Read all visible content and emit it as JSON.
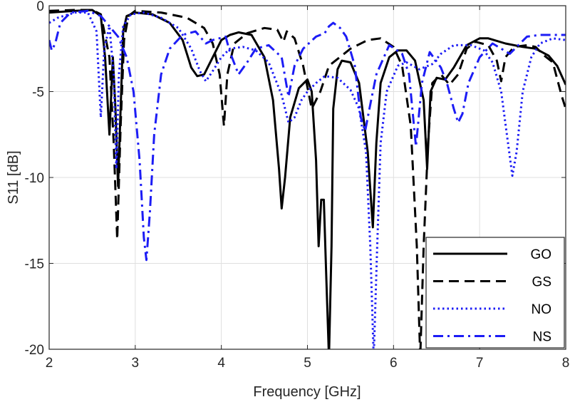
{
  "chart_data": {
    "type": "line",
    "title": "",
    "xlabel": "Frequency [GHz]",
    "ylabel": "S11 [dB]",
    "xlim": [
      2,
      8
    ],
    "ylim": [
      -20,
      0
    ],
    "xticks": [
      2,
      3,
      4,
      5,
      6,
      7,
      8
    ],
    "yticks": [
      0,
      -5,
      -10,
      -15,
      -20
    ],
    "xtick_labels": [
      "2",
      "3",
      "4",
      "5",
      "6",
      "7",
      "8"
    ],
    "ytick_labels": [
      "0",
      "-5",
      "-10",
      "-15",
      "-20"
    ],
    "grid": true,
    "legend_position": "bottom-right",
    "series": [
      {
        "name": "GO",
        "color": "#000000",
        "style": "solid",
        "points": [
          [
            2.0,
            -0.4
          ],
          [
            2.3,
            -0.3
          ],
          [
            2.5,
            -0.25
          ],
          [
            2.6,
            -0.6
          ],
          [
            2.65,
            -3
          ],
          [
            2.7,
            -7.5
          ],
          [
            2.74,
            -3
          ],
          [
            2.77,
            -6
          ],
          [
            2.8,
            -10.5
          ],
          [
            2.83,
            -6
          ],
          [
            2.86,
            -1.5
          ],
          [
            2.9,
            -0.6
          ],
          [
            3.0,
            -0.4
          ],
          [
            3.2,
            -0.5
          ],
          [
            3.4,
            -1.0
          ],
          [
            3.55,
            -2.0
          ],
          [
            3.65,
            -3.6
          ],
          [
            3.72,
            -4.1
          ],
          [
            3.8,
            -4.0
          ],
          [
            3.9,
            -3.0
          ],
          [
            4.0,
            -2.0
          ],
          [
            4.1,
            -1.7
          ],
          [
            4.2,
            -1.55
          ],
          [
            4.35,
            -1.7
          ],
          [
            4.5,
            -3.0
          ],
          [
            4.6,
            -5.5
          ],
          [
            4.67,
            -9.5
          ],
          [
            4.7,
            -11.8
          ],
          [
            4.74,
            -10
          ],
          [
            4.8,
            -6.5
          ],
          [
            4.9,
            -4.8
          ],
          [
            5.0,
            -4.3
          ],
          [
            5.05,
            -5
          ],
          [
            5.1,
            -9
          ],
          [
            5.13,
            -14
          ],
          [
            5.16,
            -11.3
          ],
          [
            5.19,
            -11.3
          ],
          [
            5.22,
            -16
          ],
          [
            5.25,
            -20.5
          ],
          [
            5.28,
            -14
          ],
          [
            5.3,
            -6
          ],
          [
            5.35,
            -3.7
          ],
          [
            5.4,
            -3.2
          ],
          [
            5.5,
            -3.3
          ],
          [
            5.6,
            -4.5
          ],
          [
            5.7,
            -8.5
          ],
          [
            5.76,
            -12.9
          ],
          [
            5.8,
            -8
          ],
          [
            5.85,
            -4.5
          ],
          [
            5.95,
            -3.0
          ],
          [
            6.05,
            -2.6
          ],
          [
            6.15,
            -2.6
          ],
          [
            6.25,
            -3.2
          ],
          [
            6.35,
            -5.5
          ],
          [
            6.39,
            -9.5
          ],
          [
            6.43,
            -5
          ],
          [
            6.5,
            -4.2
          ],
          [
            6.6,
            -4.3
          ],
          [
            6.7,
            -3.6
          ],
          [
            6.85,
            -2.3
          ],
          [
            7.0,
            -1.9
          ],
          [
            7.1,
            -1.9
          ],
          [
            7.3,
            -2.2
          ],
          [
            7.5,
            -2.4
          ],
          [
            7.65,
            -2.5
          ],
          [
            7.8,
            -2.9
          ],
          [
            7.9,
            -3.5
          ],
          [
            8.0,
            -4.6
          ]
        ]
      },
      {
        "name": "GS",
        "color": "#000000",
        "style": "dashed",
        "points": [
          [
            2.0,
            -0.3
          ],
          [
            2.3,
            -0.25
          ],
          [
            2.5,
            -0.25
          ],
          [
            2.6,
            -0.5
          ],
          [
            2.7,
            -3
          ],
          [
            2.75,
            -8
          ],
          [
            2.79,
            -13.6
          ],
          [
            2.83,
            -7
          ],
          [
            2.87,
            -2
          ],
          [
            2.92,
            -0.6
          ],
          [
            3.0,
            -0.3
          ],
          [
            3.3,
            -0.4
          ],
          [
            3.6,
            -0.7
          ],
          [
            3.8,
            -1.3
          ],
          [
            3.9,
            -2.2
          ],
          [
            3.98,
            -4
          ],
          [
            4.03,
            -7
          ],
          [
            4.07,
            -4
          ],
          [
            4.15,
            -2.2
          ],
          [
            4.3,
            -1.6
          ],
          [
            4.5,
            -1.3
          ],
          [
            4.65,
            -1.4
          ],
          [
            4.72,
            -2.1
          ],
          [
            4.76,
            -1.5
          ],
          [
            4.85,
            -1.9
          ],
          [
            4.95,
            -3.5
          ],
          [
            5.05,
            -6
          ],
          [
            5.15,
            -5
          ],
          [
            5.25,
            -3.5
          ],
          [
            5.5,
            -2.5
          ],
          [
            5.7,
            -2.0
          ],
          [
            5.85,
            -1.9
          ],
          [
            6.0,
            -2.4
          ],
          [
            6.1,
            -3.5
          ],
          [
            6.2,
            -7
          ],
          [
            6.27,
            -14
          ],
          [
            6.31,
            -20.5
          ],
          [
            6.35,
            -14
          ],
          [
            6.4,
            -8
          ],
          [
            6.45,
            -4.5
          ],
          [
            6.55,
            -4.0
          ],
          [
            6.65,
            -4.6
          ],
          [
            6.75,
            -4.0
          ],
          [
            6.85,
            -2.5
          ],
          [
            6.95,
            -2.1
          ],
          [
            7.1,
            -2.3
          ],
          [
            7.2,
            -3.2
          ],
          [
            7.25,
            -4.4
          ],
          [
            7.3,
            -3.0
          ],
          [
            7.4,
            -2.4
          ],
          [
            7.55,
            -2.3
          ],
          [
            7.65,
            -2.4
          ],
          [
            7.75,
            -2.9
          ],
          [
            7.85,
            -3.3
          ],
          [
            7.95,
            -5.2
          ],
          [
            8.0,
            -6.0
          ]
        ]
      },
      {
        "name": "NO",
        "color": "#1c1cf5",
        "style": "dotted",
        "points": [
          [
            2.0,
            -1.0
          ],
          [
            2.1,
            -0.7
          ],
          [
            2.3,
            -0.4
          ],
          [
            2.45,
            -0.4
          ],
          [
            2.55,
            -1.5
          ],
          [
            2.6,
            -6.5
          ],
          [
            2.64,
            -2.5
          ],
          [
            2.7,
            -1.2
          ],
          [
            2.75,
            -4
          ],
          [
            2.78,
            -9.5
          ],
          [
            2.81,
            -4
          ],
          [
            2.86,
            -1.2
          ],
          [
            2.95,
            -0.5
          ],
          [
            3.1,
            -0.4
          ],
          [
            3.3,
            -0.7
          ],
          [
            3.5,
            -1.3
          ],
          [
            3.65,
            -2.5
          ],
          [
            3.75,
            -3.8
          ],
          [
            3.82,
            -4.4
          ],
          [
            3.9,
            -3.8
          ],
          [
            4.0,
            -3.0
          ],
          [
            4.1,
            -2.5
          ],
          [
            4.25,
            -2.4
          ],
          [
            4.4,
            -2.6
          ],
          [
            4.55,
            -3.3
          ],
          [
            4.7,
            -5.2
          ],
          [
            4.78,
            -6.8
          ],
          [
            4.85,
            -6.5
          ],
          [
            4.93,
            -5.5
          ],
          [
            5.0,
            -5.0
          ],
          [
            5.1,
            -4.5
          ],
          [
            5.2,
            -4.1
          ],
          [
            5.35,
            -4.2
          ],
          [
            5.5,
            -4.9
          ],
          [
            5.6,
            -6.0
          ],
          [
            5.68,
            -8.5
          ],
          [
            5.73,
            -14
          ],
          [
            5.77,
            -20.5
          ],
          [
            5.81,
            -14
          ],
          [
            5.85,
            -8
          ],
          [
            5.92,
            -5
          ],
          [
            6.05,
            -3.5
          ],
          [
            6.15,
            -3.3
          ],
          [
            6.3,
            -3.7
          ],
          [
            6.45,
            -3.4
          ],
          [
            6.55,
            -2.8
          ],
          [
            6.7,
            -2.3
          ],
          [
            6.9,
            -2.3
          ],
          [
            7.05,
            -2.6
          ],
          [
            7.15,
            -3.3
          ],
          [
            7.25,
            -5
          ],
          [
            7.33,
            -8
          ],
          [
            7.38,
            -9.9
          ],
          [
            7.43,
            -8.5
          ],
          [
            7.5,
            -5
          ],
          [
            7.6,
            -3
          ],
          [
            7.7,
            -2.2
          ],
          [
            7.85,
            -1.9
          ],
          [
            8.0,
            -2.0
          ]
        ]
      },
      {
        "name": "NS",
        "color": "#1c1cf5",
        "style": "dashdot",
        "points": [
          [
            2.0,
            -2.0
          ],
          [
            2.03,
            -2.6
          ],
          [
            2.07,
            -2.2
          ],
          [
            2.13,
            -1.0
          ],
          [
            2.25,
            -0.4
          ],
          [
            2.45,
            -0.3
          ],
          [
            2.6,
            -0.6
          ],
          [
            2.7,
            -1.2
          ],
          [
            2.8,
            -1.8
          ],
          [
            2.9,
            -3
          ],
          [
            2.98,
            -5
          ],
          [
            3.05,
            -9
          ],
          [
            3.1,
            -13.5
          ],
          [
            3.13,
            -14.8
          ],
          [
            3.17,
            -12
          ],
          [
            3.22,
            -7.5
          ],
          [
            3.3,
            -4
          ],
          [
            3.4,
            -2.5
          ],
          [
            3.55,
            -1.7
          ],
          [
            3.7,
            -1.5
          ],
          [
            3.82,
            -2.2
          ],
          [
            3.9,
            -2.0
          ],
          [
            4.05,
            -1.8
          ],
          [
            4.1,
            -2.7
          ],
          [
            4.2,
            -4.0
          ],
          [
            4.3,
            -3.3
          ],
          [
            4.4,
            -2.5
          ],
          [
            4.55,
            -2.3
          ],
          [
            4.7,
            -3.0
          ],
          [
            4.78,
            -5.3
          ],
          [
            4.85,
            -3.5
          ],
          [
            4.95,
            -2.5
          ],
          [
            5.1,
            -1.8
          ],
          [
            5.2,
            -1.6
          ],
          [
            5.25,
            -1.2
          ],
          [
            5.3,
            -1.0
          ],
          [
            5.38,
            -1.3
          ],
          [
            5.45,
            -1.8
          ],
          [
            5.55,
            -3.5
          ],
          [
            5.62,
            -6.5
          ],
          [
            5.67,
            -7.3
          ],
          [
            5.72,
            -6
          ],
          [
            5.8,
            -4
          ],
          [
            5.95,
            -2.3
          ],
          [
            6.1,
            -2.8
          ],
          [
            6.18,
            -4
          ],
          [
            6.26,
            -8.2
          ],
          [
            6.33,
            -4.5
          ],
          [
            6.42,
            -2.7
          ],
          [
            6.55,
            -3.6
          ],
          [
            6.62,
            -4.5
          ],
          [
            6.7,
            -6.0
          ],
          [
            6.75,
            -6.8
          ],
          [
            6.8,
            -6.3
          ],
          [
            6.87,
            -4.5
          ],
          [
            7.0,
            -3.0
          ],
          [
            7.15,
            -2.2
          ],
          [
            7.35,
            -2.8
          ],
          [
            7.45,
            -2.3
          ],
          [
            7.55,
            -1.8
          ],
          [
            7.7,
            -1.7
          ],
          [
            7.85,
            -1.7
          ],
          [
            8.0,
            -1.7
          ]
        ]
      }
    ]
  }
}
